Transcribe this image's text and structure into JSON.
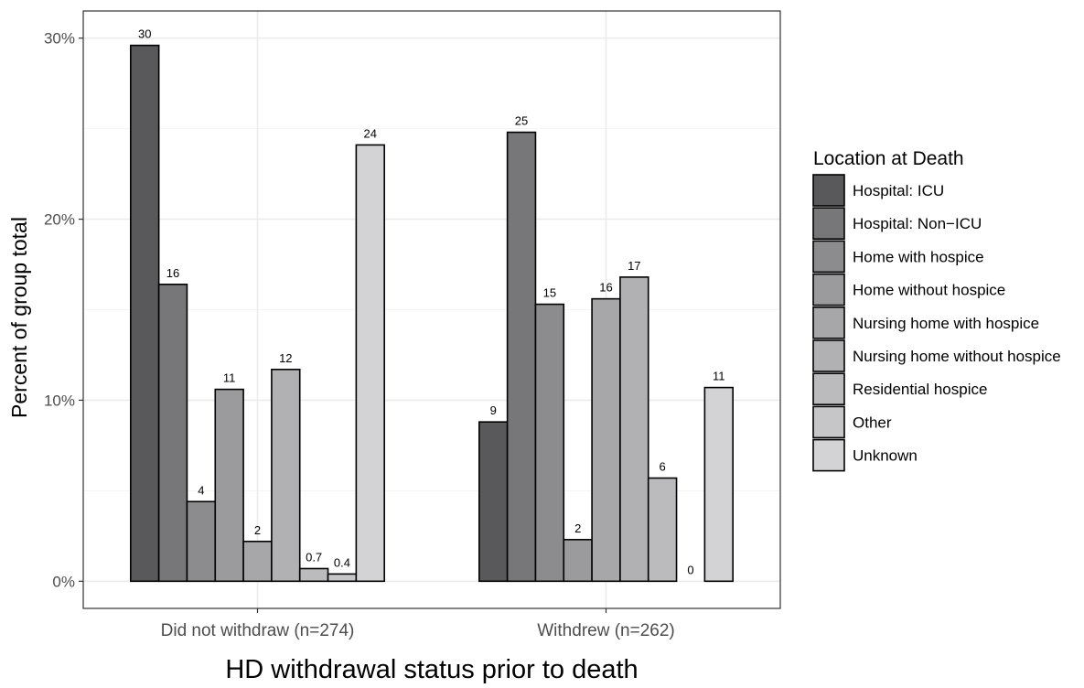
{
  "chart_data": {
    "type": "bar",
    "xlabel": "HD withdrawal status prior to death",
    "ylabel": "Percent of group total",
    "ylim": [
      -1.5,
      31.5
    ],
    "yticks": [
      {
        "value": 0,
        "label": "0%"
      },
      {
        "value": 10,
        "label": "10%"
      },
      {
        "value": 20,
        "label": "20%"
      },
      {
        "value": 30,
        "label": "30%"
      }
    ],
    "grid": true,
    "legend_position": "right",
    "categories": [
      "Did not withdraw (n=274)",
      "Withdrew (n=262)"
    ],
    "legend": {
      "title": "Location at Death",
      "entries": [
        "Hospital: ICU",
        "Hospital: Non−ICU",
        "Home with hospice",
        "Home without hospice",
        "Nursing home with hospice",
        "Nursing home without hospice",
        "Residential hospice",
        "Other",
        "Unknown"
      ]
    },
    "series": [
      {
        "name": "Hospital: ICU",
        "color": "#59595b",
        "values": [
          29.6,
          8.8
        ],
        "labels": [
          "30",
          "9"
        ]
      },
      {
        "name": "Hospital: Non−ICU",
        "color": "#77777a",
        "values": [
          16.4,
          24.8
        ],
        "labels": [
          "16",
          "25"
        ]
      },
      {
        "name": "Home with hospice",
        "color": "#8c8c8f",
        "values": [
          4.4,
          15.3
        ],
        "labels": [
          "4",
          "15"
        ]
      },
      {
        "name": "Home without hospice",
        "color": "#9b9b9e",
        "values": [
          10.6,
          2.3
        ],
        "labels": [
          "11",
          "2"
        ]
      },
      {
        "name": "Nursing home with hospice",
        "color": "#a7a7aa",
        "values": [
          2.2,
          15.6
        ],
        "labels": [
          "2",
          "16"
        ]
      },
      {
        "name": "Nursing home without hospice",
        "color": "#b1b1b4",
        "values": [
          11.7,
          16.8
        ],
        "labels": [
          "12",
          "17"
        ]
      },
      {
        "name": "Residential hospice",
        "color": "#bbbbbe",
        "values": [
          0.7,
          5.7
        ],
        "labels": [
          "0.7",
          "6"
        ]
      },
      {
        "name": "Other",
        "color": "#c6c6c9",
        "values": [
          0.4,
          0.0
        ],
        "labels": [
          "0.4",
          "0"
        ]
      },
      {
        "name": "Unknown",
        "color": "#d3d3d6",
        "values": [
          24.1,
          10.7
        ],
        "labels": [
          "24",
          "11"
        ]
      }
    ]
  }
}
